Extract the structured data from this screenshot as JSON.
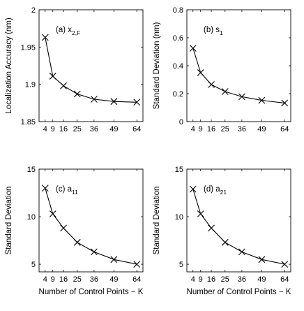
{
  "chart_data": [
    {
      "type": "line",
      "annotation": {
        "base": "(a) x",
        "sub": "2,F"
      },
      "ylabel": "Localization Accuracy (nm)",
      "xlabel": "",
      "ylim": [
        1.85,
        2.0
      ],
      "yticks": [
        "1.85",
        "1.9",
        "1.95",
        "2"
      ],
      "xticks": [
        "4",
        "9",
        "16",
        "25",
        "36",
        "49",
        "64"
      ],
      "x": [
        4,
        9,
        16,
        25,
        36,
        49,
        64
      ],
      "values": [
        1.963,
        1.911,
        1.898,
        1.887,
        1.88,
        1.877,
        1.876
      ]
    },
    {
      "type": "line",
      "annotation": {
        "base": "(b) s",
        "sub": "1"
      },
      "ylabel": "Standard Deviation (nm)",
      "xlabel": "",
      "ylim": [
        0,
        0.8
      ],
      "yticks": [
        "0",
        "0.2",
        "0.4",
        "0.6",
        "0.8"
      ],
      "xticks": [
        "4",
        "9",
        "16",
        "25",
        "36",
        "49",
        "64"
      ],
      "x": [
        4,
        9,
        16,
        25,
        36,
        49,
        64
      ],
      "values": [
        0.525,
        0.35,
        0.265,
        0.215,
        0.178,
        0.152,
        0.133
      ]
    },
    {
      "type": "line",
      "annotation": {
        "base": "(c) a",
        "sub": "11"
      },
      "ylabel": "Standard Deviation",
      "xlabel": "Number of Control Points − K",
      "ylim": [
        4.2,
        15
      ],
      "yticks": [
        "5",
        "10",
        "15"
      ],
      "ytickvals": [
        5,
        10,
        15
      ],
      "xticks": [
        "4",
        "9",
        "16",
        "25",
        "36",
        "49",
        "64"
      ],
      "x": [
        4,
        9,
        16,
        25,
        36,
        49,
        64
      ],
      "values": [
        13.0,
        10.3,
        8.8,
        7.3,
        6.3,
        5.5,
        5.0
      ]
    },
    {
      "type": "line",
      "annotation": {
        "base": "(d) a",
        "sub": "21"
      },
      "ylabel": "Standard Deviation",
      "xlabel": "Number of Control Points − K",
      "ylim": [
        4.2,
        15
      ],
      "yticks": [
        "5",
        "10",
        "15"
      ],
      "ytickvals": [
        5,
        10,
        15
      ],
      "xticks": [
        "4",
        "9",
        "16",
        "25",
        "36",
        "49",
        "64"
      ],
      "x": [
        4,
        9,
        16,
        25,
        36,
        49,
        64
      ],
      "values": [
        12.9,
        10.3,
        8.8,
        7.3,
        6.3,
        5.5,
        5.0
      ]
    }
  ]
}
